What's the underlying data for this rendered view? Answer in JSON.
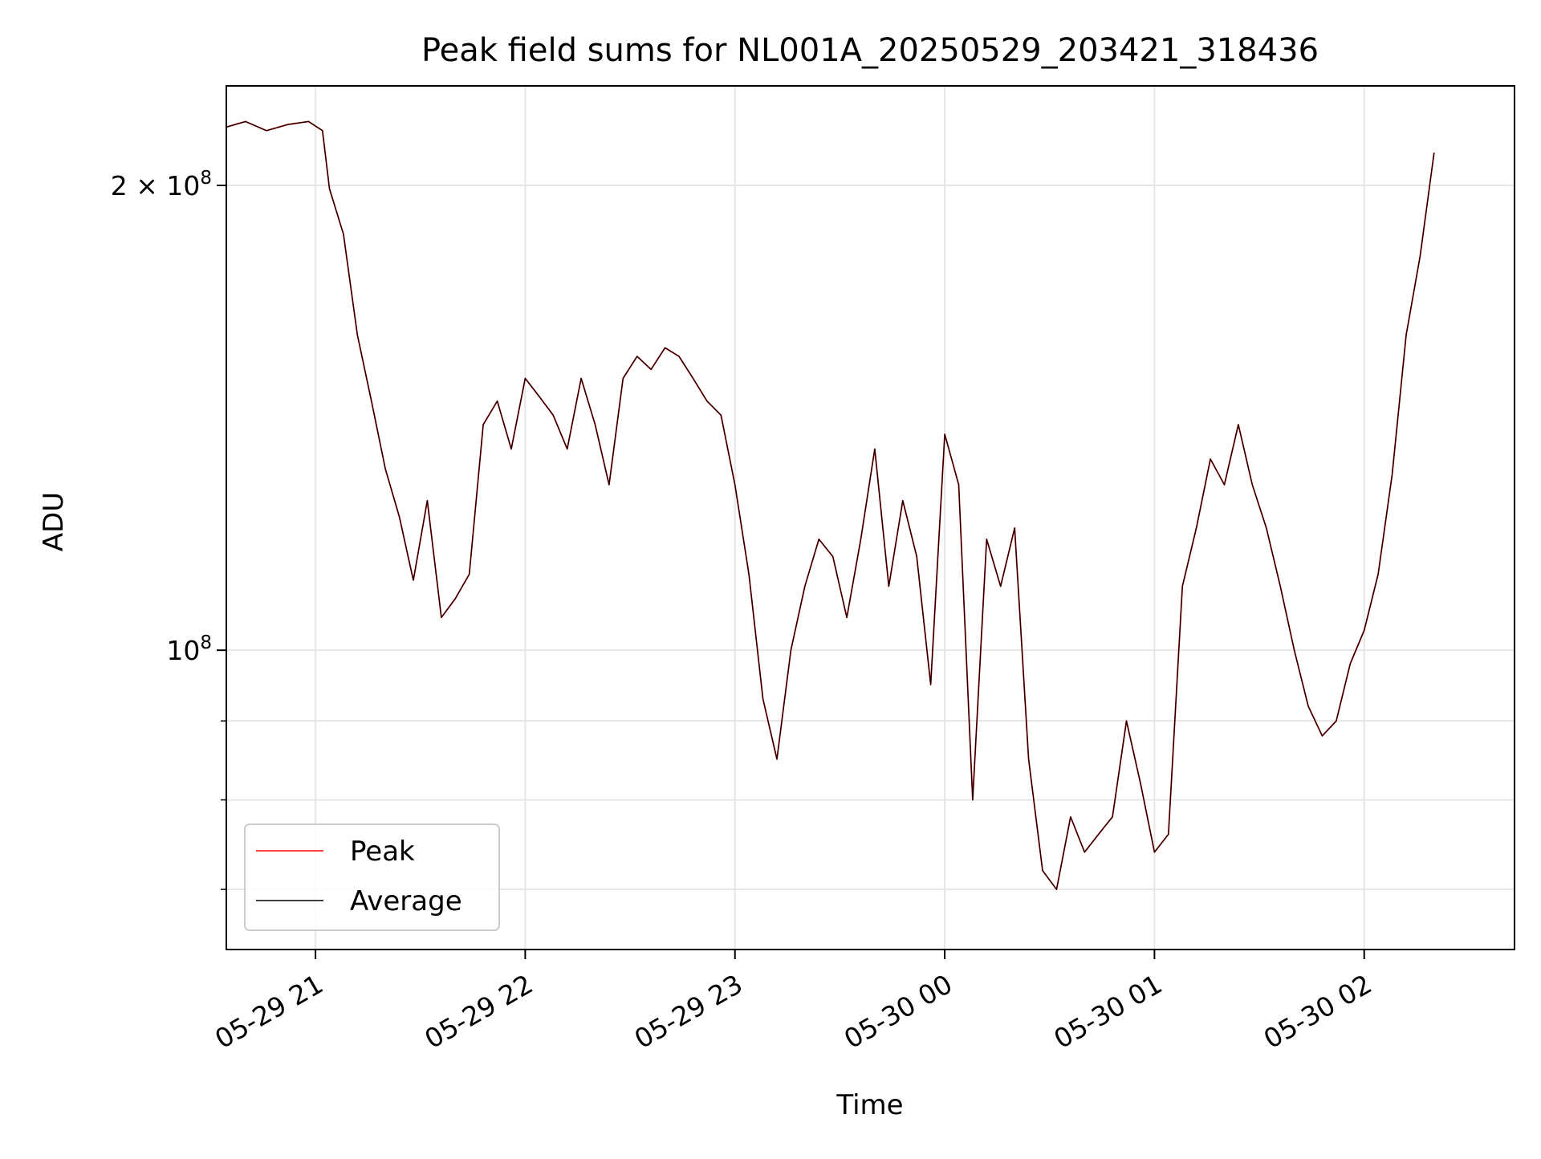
{
  "chart_data": {
    "type": "line",
    "title": "Peak field sums for NL001A_20250529_203421_318436",
    "xlabel": "Time",
    "ylabel": "ADU",
    "yscale": "log",
    "ylim": [
      64000000,
      232000000
    ],
    "xlim": [
      "05-29 20:34:30",
      "05-30 02:43:00"
    ],
    "grid": true,
    "legend_position": "lower-left",
    "x_ticks": [
      {
        "value": "05-29 21:00",
        "label": "05-29 21"
      },
      {
        "value": "05-29 22:00",
        "label": "05-29 22"
      },
      {
        "value": "05-29 23:00",
        "label": "05-29 23"
      },
      {
        "value": "05-30 00:00",
        "label": "05-30 00"
      },
      {
        "value": "05-30 01:00",
        "label": "05-30 01"
      },
      {
        "value": "05-30 02:00",
        "label": "05-30 02"
      }
    ],
    "y_ticks_major": [
      {
        "value": 100000000,
        "label_mantissa": "",
        "label_base": "10",
        "label_exp": "8"
      },
      {
        "value": 200000000,
        "label_mantissa": "2 × ",
        "label_base": "10",
        "label_exp": "8"
      }
    ],
    "y_ticks_minor": [
      70000000,
      80000000,
      90000000
    ],
    "x": [
      "05-29 20:34",
      "05-29 20:40",
      "05-29 20:46",
      "05-29 20:52",
      "05-29 20:58",
      "05-29 21:02",
      "05-29 21:04",
      "05-29 21:08",
      "05-29 21:12",
      "05-29 21:16",
      "05-29 21:20",
      "05-29 21:24",
      "05-29 21:28",
      "05-29 21:32",
      "05-29 21:36",
      "05-29 21:40",
      "05-29 21:44",
      "05-29 21:48",
      "05-29 21:52",
      "05-29 21:56",
      "05-29 22:00",
      "05-29 22:04",
      "05-29 22:08",
      "05-29 22:12",
      "05-29 22:16",
      "05-29 22:20",
      "05-29 22:24",
      "05-29 22:28",
      "05-29 22:32",
      "05-29 22:36",
      "05-29 22:40",
      "05-29 22:44",
      "05-29 22:48",
      "05-29 22:52",
      "05-29 22:56",
      "05-29 23:00",
      "05-29 23:04",
      "05-29 23:08",
      "05-29 23:12",
      "05-29 23:16",
      "05-29 23:20",
      "05-29 23:24",
      "05-29 23:28",
      "05-29 23:32",
      "05-29 23:36",
      "05-29 23:40",
      "05-29 23:44",
      "05-29 23:48",
      "05-29 23:52",
      "05-29 23:56",
      "05-30 00:00",
      "05-30 00:04",
      "05-30 00:08",
      "05-30 00:12",
      "05-30 00:16",
      "05-30 00:20",
      "05-30 00:24",
      "05-30 00:28",
      "05-30 00:32",
      "05-30 00:36",
      "05-30 00:40",
      "05-30 00:44",
      "05-30 00:48",
      "05-30 00:52",
      "05-30 00:56",
      "05-30 01:00",
      "05-30 01:04",
      "05-30 01:08",
      "05-30 01:12",
      "05-30 01:16",
      "05-30 01:20",
      "05-30 01:24",
      "05-30 01:28",
      "05-30 01:32",
      "05-30 01:36",
      "05-30 01:40",
      "05-30 01:44",
      "05-30 01:48",
      "05-30 01:52",
      "05-30 01:56",
      "05-30 02:00",
      "05-30 02:04",
      "05-30 02:08",
      "05-30 02:12",
      "05-30 02:16",
      "05-30 02:20"
    ],
    "series": [
      {
        "name": "Peak",
        "color": "#ff0000",
        "values": [
          218000000,
          220000000,
          217000000,
          219000000,
          220000000,
          217000000,
          199000000,
          186000000,
          160000000,
          145000000,
          131000000,
          122000000,
          111000000,
          125000000,
          105000000,
          108000000,
          112000000,
          140000000,
          145000000,
          135000000,
          150000000,
          146000000,
          142000000,
          135000000,
          150000000,
          140000000,
          128000000,
          150000000,
          155000000,
          152000000,
          157000000,
          155000000,
          150000000,
          145000000,
          142000000,
          128000000,
          112000000,
          93000000,
          85000000,
          100000000,
          110000000,
          118000000,
          115000000,
          105000000,
          118000000,
          135000000,
          110000000,
          125000000,
          115000000,
          95000000,
          138000000,
          128000000,
          80000000,
          118000000,
          110000000,
          120000000,
          85000000,
          72000000,
          70000000,
          78000000,
          74000000,
          76000000,
          78000000,
          90000000,
          82000000,
          74000000,
          76000000,
          110000000,
          120000000,
          133000000,
          128000000,
          140000000,
          128000000,
          120000000,
          110000000,
          100000000,
          92000000,
          88000000,
          90000000,
          98000000,
          103000000,
          112000000,
          130000000,
          160000000,
          180000000,
          210000000
        ]
      },
      {
        "name": "Average",
        "color": "#000000",
        "values": [
          218000000,
          220000000,
          217000000,
          219000000,
          220000000,
          217000000,
          199000000,
          186000000,
          160000000,
          145000000,
          131000000,
          122000000,
          111000000,
          125000000,
          105000000,
          108000000,
          112000000,
          140000000,
          145000000,
          135000000,
          150000000,
          146000000,
          142000000,
          135000000,
          150000000,
          140000000,
          128000000,
          150000000,
          155000000,
          152000000,
          157000000,
          155000000,
          150000000,
          145000000,
          142000000,
          128000000,
          112000000,
          93000000,
          85000000,
          100000000,
          110000000,
          118000000,
          115000000,
          105000000,
          118000000,
          135000000,
          110000000,
          125000000,
          115000000,
          95000000,
          138000000,
          128000000,
          80000000,
          118000000,
          110000000,
          120000000,
          85000000,
          72000000,
          70000000,
          78000000,
          74000000,
          76000000,
          78000000,
          90000000,
          82000000,
          74000000,
          76000000,
          110000000,
          120000000,
          133000000,
          128000000,
          140000000,
          128000000,
          120000000,
          110000000,
          100000000,
          92000000,
          88000000,
          90000000,
          98000000,
          103000000,
          112000000,
          130000000,
          160000000,
          180000000,
          210000000
        ]
      }
    ]
  }
}
